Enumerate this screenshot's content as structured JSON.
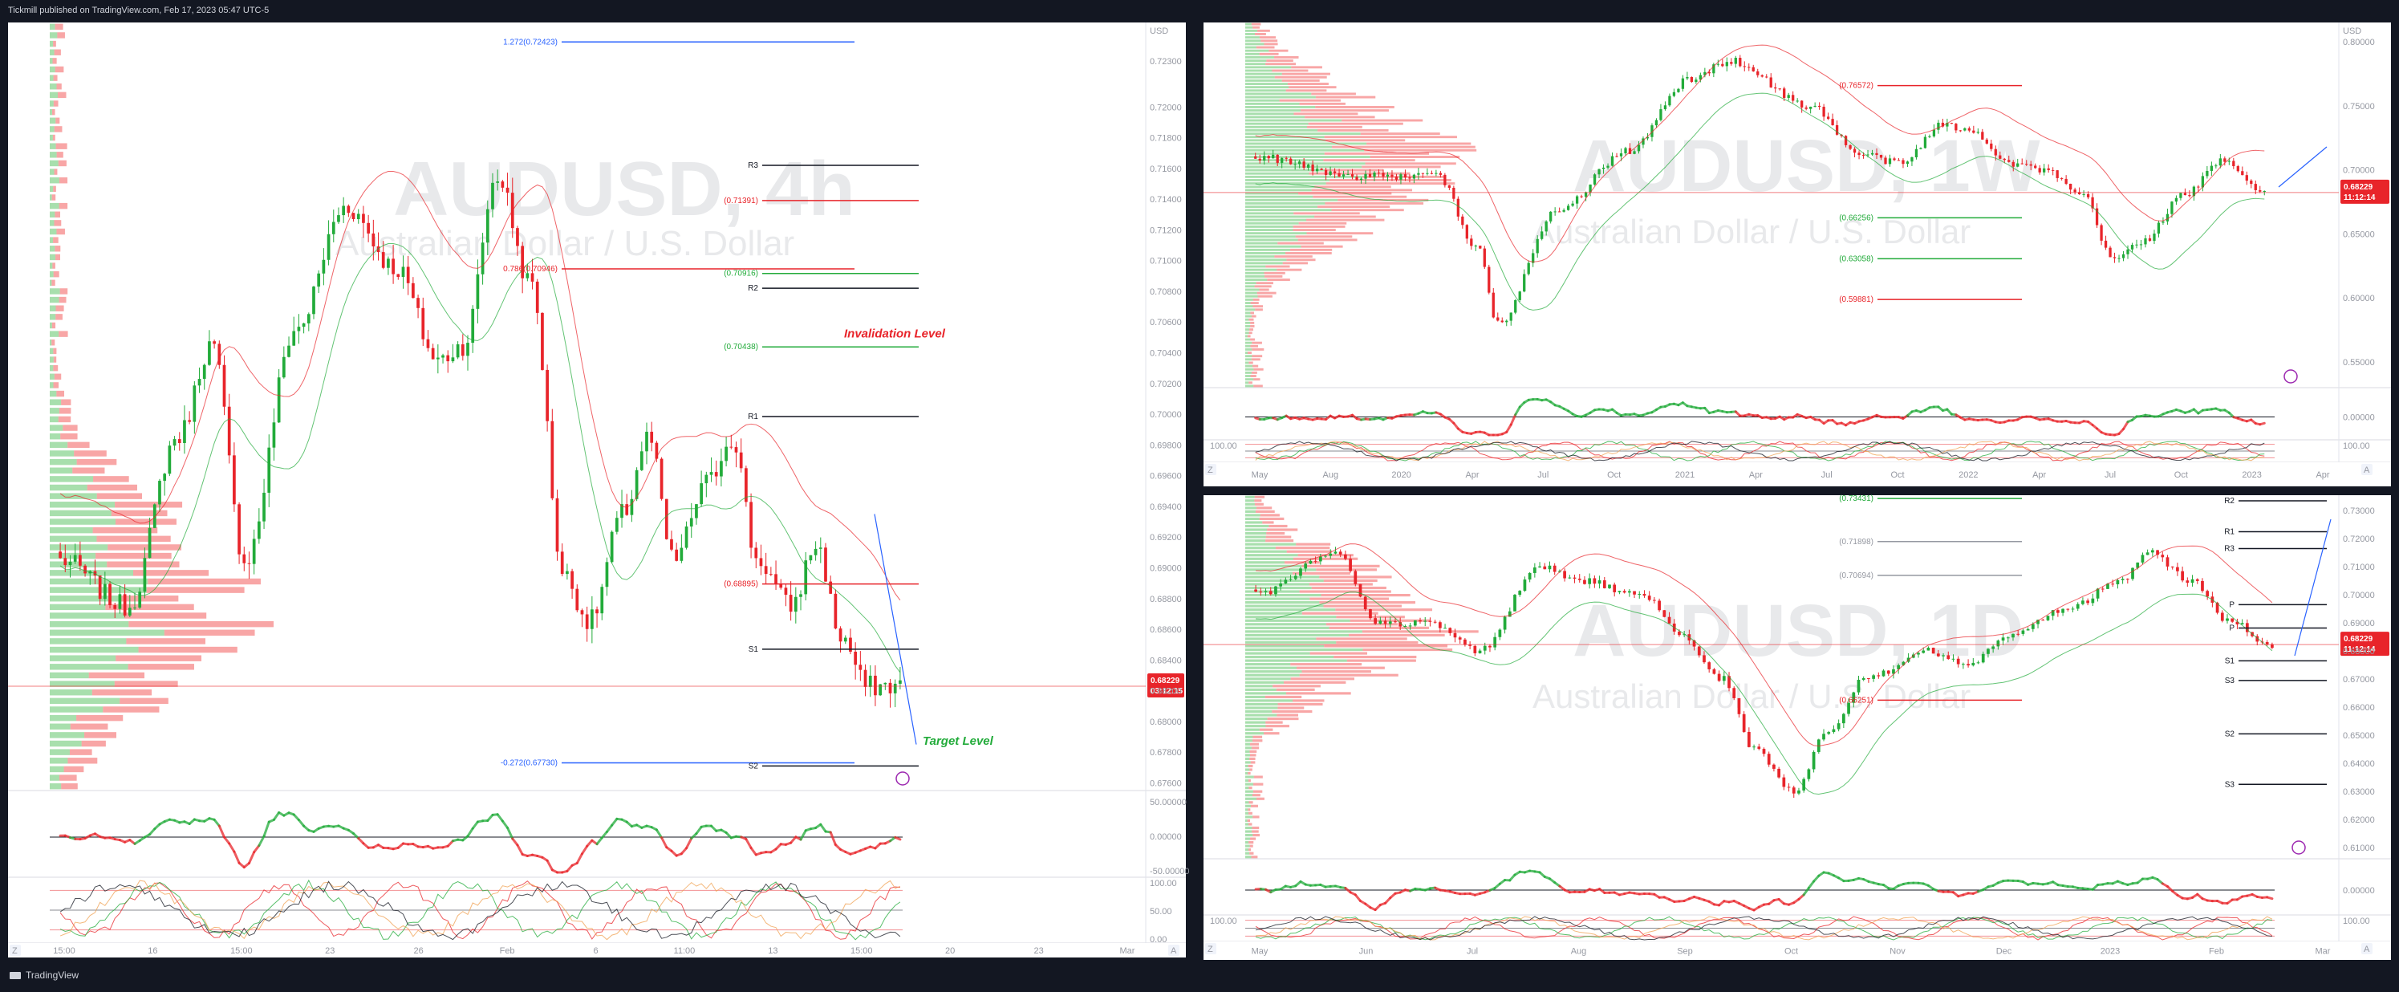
{
  "header": {
    "published": "Tickmill published on TradingView.com, Feb 17, 2023 05:47 UTC-5"
  },
  "footer": {
    "brand": "TradingView"
  },
  "colors": {
    "up": "#22ab3a",
    "down": "#e8242a",
    "profile_up": "#3db94a",
    "profile_down": "#f03a3a",
    "bg": "#ffffff",
    "frame": "#131722",
    "price_badge": "#e8242a"
  },
  "chart_data": [
    {
      "id": "left",
      "type": "candlestick",
      "symbol": "AUDUSD, 4h",
      "description": "Australian Dollar / U.S. Dollar",
      "x_ticks": [
        "15:00",
        "16",
        "15:00",
        "23",
        "26",
        "Feb",
        "6",
        "11:00",
        "13",
        "15:00",
        "20",
        "23",
        "Mar"
      ],
      "y_unit": "USD",
      "y_ticks": [
        "0.72300",
        "0.72000",
        "0.71800",
        "0.71600",
        "0.71400",
        "0.71200",
        "0.71000",
        "0.70800",
        "0.70600",
        "0.70400",
        "0.70200",
        "0.70000",
        "0.69800",
        "0.69600",
        "0.69400",
        "0.69200",
        "0.69000",
        "0.68800",
        "0.68600",
        "0.68400",
        "0.68200",
        "0.68000",
        "0.67800",
        "0.67600"
      ],
      "ylim": [
        0.6755,
        0.7255
      ],
      "last_price": "0.68229",
      "countdown": "03:12:15",
      "levels": [
        {
          "label": "1.272(0.72423)",
          "value": 0.72423,
          "color": "#2962ff"
        },
        {
          "label": "R3",
          "value": 0.7162,
          "color": "#131722"
        },
        {
          "label": "(0.71391)",
          "value": 0.71391,
          "color": "#e8242a"
        },
        {
          "label": "0.786(0.70946)",
          "value": 0.70946,
          "color": "#e8242a"
        },
        {
          "label": "(0.70916)",
          "value": 0.70916,
          "color": "#22ab3a"
        },
        {
          "label": "R2",
          "value": 0.7082,
          "color": "#131722"
        },
        {
          "label": "(0.70438)",
          "value": 0.70438,
          "color": "#22ab3a"
        },
        {
          "label": "R1",
          "value": 0.69985,
          "color": "#131722"
        },
        {
          "label": "(0.68895)",
          "value": 0.68895,
          "color": "#e8242a"
        },
        {
          "label": "S1",
          "value": 0.6847,
          "color": "#131722"
        },
        {
          "label": "-0.272(0.67730)",
          "value": 0.6773,
          "color": "#2962ff"
        },
        {
          "label": "S2",
          "value": 0.6771,
          "color": "#131722"
        }
      ],
      "annotations": [
        "Invalidation Level",
        "Target Level"
      ],
      "osc1_ticks": [
        "50.00000",
        "0.00000",
        "-50.00000"
      ],
      "osc2_ticks": [
        "100.00",
        "50.00",
        "0.00"
      ]
    },
    {
      "id": "top_right",
      "type": "candlestick",
      "symbol": "AUDUSD, 1W",
      "description": "Australian Dollar / U.S. Dollar",
      "x_ticks": [
        "May",
        "Aug",
        "2020",
        "Apr",
        "Jul",
        "Oct",
        "2021",
        "Apr",
        "Jul",
        "Oct",
        "2022",
        "Apr",
        "Jul",
        "Oct",
        "2023",
        "Apr"
      ],
      "y_unit": "USD",
      "y_ticks": [
        "0.80000",
        "0.75000",
        "0.70000",
        "0.65000",
        "0.60000",
        "0.55000"
      ],
      "ylim": [
        0.53,
        0.815
      ],
      "last_price": "0.68229",
      "countdown": "11:12:14",
      "levels": [
        {
          "label": "(0.76572)",
          "value": 0.76572,
          "color": "#e8242a"
        },
        {
          "label": "(0.66256)",
          "value": 0.66256,
          "color": "#22ab3a"
        },
        {
          "label": "(0.63058)",
          "value": 0.63058,
          "color": "#22ab3a"
        },
        {
          "label": "(0.59881)",
          "value": 0.59881,
          "color": "#e8242a"
        }
      ],
      "osc1_ticks": [
        "0.00000"
      ],
      "osc2_ticks": [
        "100.00"
      ]
    },
    {
      "id": "bottom_right",
      "type": "candlestick",
      "symbol": "AUDUSD, 1D",
      "description": "Australian Dollar / U.S. Dollar",
      "x_ticks": [
        "May",
        "Jun",
        "Jul",
        "Aug",
        "Sep",
        "Oct",
        "Nov",
        "Dec",
        "2023",
        "Feb",
        "Mar"
      ],
      "y_unit": "",
      "y_ticks": [
        "0.73000",
        "0.72000",
        "0.71000",
        "0.70000",
        "0.69000",
        "0.68000",
        "0.67000",
        "0.66000",
        "0.65000",
        "0.64000",
        "0.63000",
        "0.62000",
        "0.61000"
      ],
      "ylim": [
        0.606,
        0.7355
      ],
      "last_price": "0.68229",
      "countdown": "11:12:14",
      "levels": [
        {
          "label": "(0.73431)",
          "value": 0.73431,
          "color": "#22ab3a"
        },
        {
          "label": "R2",
          "value": 0.7335,
          "color": "#131722"
        },
        {
          "label": "R1",
          "value": 0.7225,
          "color": "#131722"
        },
        {
          "label": "(0.71898)",
          "value": 0.71898,
          "color": "#9598a1"
        },
        {
          "label": "R3",
          "value": 0.7165,
          "color": "#131722"
        },
        {
          "label": "(0.70694)",
          "value": 0.70694,
          "color": "#9598a1"
        },
        {
          "label": "P",
          "value": 0.6965,
          "color": "#131722"
        },
        {
          "label": "P",
          "value": 0.6882,
          "color": "#131722"
        },
        {
          "label": "S1",
          "value": 0.6765,
          "color": "#131722"
        },
        {
          "label": "S3",
          "value": 0.6695,
          "color": "#131722"
        },
        {
          "label": "(0.66251)",
          "value": 0.66251,
          "color": "#e8242a"
        },
        {
          "label": "S2",
          "value": 0.6505,
          "color": "#131722"
        },
        {
          "label": "S3",
          "value": 0.6325,
          "color": "#131722"
        }
      ],
      "osc1_ticks": [
        "0.00000"
      ],
      "osc2_ticks": [
        "100.00"
      ]
    }
  ]
}
